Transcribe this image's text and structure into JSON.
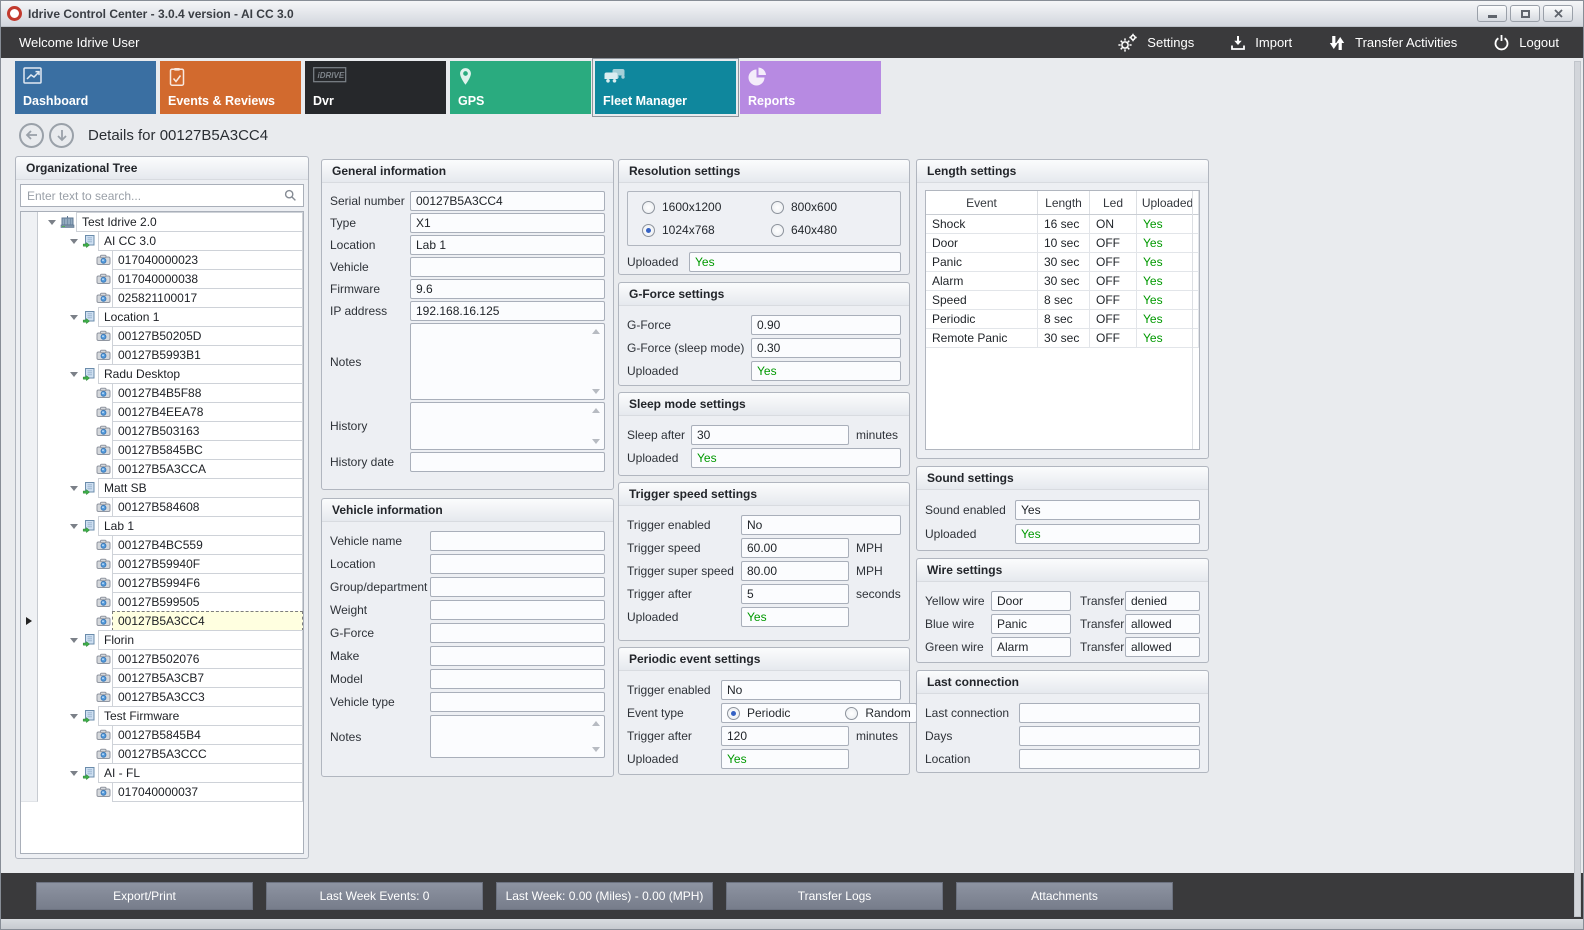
{
  "window": {
    "title": "Idrive Control Center - 3.0.4 version - AI CC 3.0"
  },
  "toolbar": {
    "welcome": "Welcome Idrive User",
    "actions": [
      {
        "id": "settings",
        "label": "Settings",
        "icon": "gears-icon"
      },
      {
        "id": "import",
        "label": "Import",
        "icon": "import-icon"
      },
      {
        "id": "transfer-activities",
        "label": "Transfer Activities",
        "icon": "transfer-icon"
      },
      {
        "id": "logout",
        "label": "Logout",
        "icon": "power-icon"
      }
    ]
  },
  "tiles": [
    {
      "id": "dashboard",
      "label": "Dashboard",
      "color": "#3a6fa2",
      "icon": "chart-line-icon",
      "selected": false
    },
    {
      "id": "events-reviews",
      "label": "Events & Reviews",
      "color": "#d26a2e",
      "icon": "clipboard-icon",
      "selected": false
    },
    {
      "id": "dvr",
      "label": "Dvr",
      "color": "#26282b",
      "icon": "dvr-logo-icon",
      "selected": false
    },
    {
      "id": "gps",
      "label": "GPS",
      "color": "#2aab7f",
      "icon": "map-pin-icon",
      "selected": false
    },
    {
      "id": "fleet-manager",
      "label": "Fleet Manager",
      "color": "#0f879d",
      "icon": "fleet-icon",
      "selected": true
    },
    {
      "id": "reports",
      "label": "Reports",
      "color": "#b78ae2",
      "icon": "pie-chart-icon",
      "selected": false
    }
  ],
  "details": {
    "title": "Details for 00127B5A3CC4"
  },
  "tree": {
    "title": "Organizational Tree",
    "search_placeholder": "Enter text to search...",
    "nodes": [
      {
        "label": "Test Idrive 2.0",
        "level": 0,
        "type": "org"
      },
      {
        "label": "AI CC 3.0",
        "level": 1,
        "type": "group"
      },
      {
        "label": "017040000023",
        "level": 2,
        "type": "device"
      },
      {
        "label": "017040000038",
        "level": 2,
        "type": "device"
      },
      {
        "label": "025821100017",
        "level": 2,
        "type": "device"
      },
      {
        "label": "Location 1",
        "level": 1,
        "type": "group"
      },
      {
        "label": "00127B50205D",
        "level": 2,
        "type": "device"
      },
      {
        "label": "00127B5993B1",
        "level": 2,
        "type": "device"
      },
      {
        "label": "Radu Desktop",
        "level": 1,
        "type": "group"
      },
      {
        "label": "00127B4B5F88",
        "level": 2,
        "type": "device"
      },
      {
        "label": "00127B4EEA78",
        "level": 2,
        "type": "device"
      },
      {
        "label": "00127B503163",
        "level": 2,
        "type": "device"
      },
      {
        "label": "00127B5845BC",
        "level": 2,
        "type": "device"
      },
      {
        "label": "00127B5A3CCA",
        "level": 2,
        "type": "device"
      },
      {
        "label": "Matt SB",
        "level": 1,
        "type": "group"
      },
      {
        "label": "00127B584608",
        "level": 2,
        "type": "device"
      },
      {
        "label": "Lab 1",
        "level": 1,
        "type": "group"
      },
      {
        "label": "00127B4BC559",
        "level": 2,
        "type": "device"
      },
      {
        "label": "00127B59940F",
        "level": 2,
        "type": "device"
      },
      {
        "label": "00127B5994F6",
        "level": 2,
        "type": "device"
      },
      {
        "label": "00127B599505",
        "level": 2,
        "type": "device"
      },
      {
        "label": "00127B5A3CC4",
        "level": 2,
        "type": "device",
        "selected": true
      },
      {
        "label": "Florin",
        "level": 1,
        "type": "group"
      },
      {
        "label": "00127B502076",
        "level": 2,
        "type": "device"
      },
      {
        "label": "00127B5A3CB7",
        "level": 2,
        "type": "device"
      },
      {
        "label": "00127B5A3CC3",
        "level": 2,
        "type": "device"
      },
      {
        "label": "Test Firmware",
        "level": 1,
        "type": "group"
      },
      {
        "label": "00127B5845B4",
        "level": 2,
        "type": "device"
      },
      {
        "label": "00127B5A3CCC",
        "level": 2,
        "type": "device"
      },
      {
        "label": "AI - FL",
        "level": 1,
        "type": "group"
      },
      {
        "label": "017040000037",
        "level": 2,
        "type": "device"
      }
    ]
  },
  "panels": {
    "general_info": {
      "title": "General information",
      "fields": [
        {
          "name": "serial-number",
          "label": "Serial number",
          "value": "00127B5A3CC4",
          "type": "text"
        },
        {
          "name": "type",
          "label": "Type",
          "value": "X1",
          "type": "text"
        },
        {
          "name": "location",
          "label": "Location",
          "value": "Lab 1",
          "type": "text"
        },
        {
          "name": "vehicle",
          "label": "Vehicle",
          "value": "",
          "type": "text"
        },
        {
          "name": "firmware",
          "label": "Firmware",
          "value": "9.6",
          "type": "text"
        },
        {
          "name": "ip-address",
          "label": "IP address",
          "value": "192.168.16.125",
          "type": "text"
        },
        {
          "name": "notes",
          "label": "Notes",
          "value": "",
          "type": "multiline"
        },
        {
          "name": "history",
          "label": "History",
          "value": "",
          "type": "multiline"
        },
        {
          "name": "history-date",
          "label": "History date",
          "value": "",
          "type": "text"
        }
      ]
    },
    "vehicle_info": {
      "title": "Vehicle information",
      "fields": [
        {
          "name": "vehicle-name",
          "label": "Vehicle name",
          "value": "",
          "type": "text"
        },
        {
          "name": "location",
          "label": "Location",
          "value": "",
          "type": "text"
        },
        {
          "name": "group-department",
          "label": "Group/department",
          "value": "",
          "type": "text"
        },
        {
          "name": "weight",
          "label": "Weight",
          "value": "",
          "type": "text"
        },
        {
          "name": "g-force",
          "label": "G-Force",
          "value": "",
          "type": "text"
        },
        {
          "name": "make",
          "label": "Make",
          "value": "",
          "type": "text"
        },
        {
          "name": "model",
          "label": "Model",
          "value": "",
          "type": "text"
        },
        {
          "name": "vehicle-type",
          "label": "Vehicle type",
          "value": "",
          "type": "text"
        },
        {
          "name": "notes",
          "label": "Notes",
          "value": "",
          "type": "multiline"
        }
      ]
    },
    "resolution": {
      "title": "Resolution settings",
      "options": [
        {
          "label": "1600x1200",
          "selected": false
        },
        {
          "label": "800x600",
          "selected": false
        },
        {
          "label": "1024x768",
          "selected": true
        },
        {
          "label": "640x480",
          "selected": false
        }
      ],
      "fields": [
        {
          "name": "uploaded",
          "label": "Uploaded",
          "value": "Yes",
          "type": "text",
          "green": true
        }
      ]
    },
    "gforce": {
      "title": "G-Force settings",
      "fields": [
        {
          "name": "g-force",
          "label": "G-Force",
          "value": "0.90",
          "type": "text"
        },
        {
          "name": "g-force-sleep-mode",
          "label": "G-Force (sleep mode)",
          "value": "0.30",
          "type": "text"
        },
        {
          "name": "uploaded",
          "label": "Uploaded",
          "value": "Yes",
          "type": "text",
          "green": true
        }
      ]
    },
    "sleep": {
      "title": "Sleep mode settings",
      "fields": [
        {
          "name": "sleep-after",
          "label": "Sleep after",
          "value": "30",
          "type": "text",
          "suffix": "minutes"
        },
        {
          "name": "uploaded",
          "label": "Uploaded",
          "value": "Yes",
          "type": "text",
          "green": true
        }
      ]
    },
    "trigger_speed": {
      "title": "Trigger speed settings",
      "fields": [
        {
          "name": "trigger-enabled",
          "label": "Trigger enabled",
          "value": "No",
          "type": "text"
        },
        {
          "name": "trigger-speed",
          "label": "Trigger speed",
          "value": "60.00",
          "type": "text",
          "suffix": "MPH"
        },
        {
          "name": "trigger-super-speed",
          "label": "Trigger super speed",
          "value": "80.00",
          "type": "text",
          "suffix": "MPH"
        },
        {
          "name": "trigger-after",
          "label": "Trigger after",
          "value": "5",
          "type": "text",
          "suffix": "seconds"
        },
        {
          "name": "uploaded",
          "label": "Uploaded",
          "value": "Yes",
          "type": "text",
          "green": true,
          "short": true
        }
      ]
    },
    "periodic": {
      "title": "Periodic event settings",
      "fields": [
        {
          "name": "trigger-enabled",
          "label": "Trigger enabled",
          "value": "No",
          "type": "text"
        },
        {
          "name": "event-type",
          "label": "Event type",
          "type": "radio-pair",
          "short": true,
          "options": [
            {
              "label": "Periodic",
              "selected": true
            },
            {
              "label": "Random",
              "selected": false
            }
          ]
        },
        {
          "name": "trigger-after",
          "label": "Trigger after",
          "value": "120",
          "type": "text",
          "suffix": "minutes"
        },
        {
          "name": "uploaded",
          "label": "Uploaded",
          "value": "Yes",
          "type": "text",
          "green": true,
          "short": true
        }
      ]
    },
    "length": {
      "title": "Length settings",
      "columns": [
        "Event",
        "Length",
        "Led",
        "Uploaded"
      ],
      "rows": [
        [
          "Shock",
          "16 sec",
          "ON",
          "Yes"
        ],
        [
          "Door",
          "10 sec",
          "OFF",
          "Yes"
        ],
        [
          "Panic",
          "30 sec",
          "OFF",
          "Yes"
        ],
        [
          "Alarm",
          "30 sec",
          "OFF",
          "Yes"
        ],
        [
          "Speed",
          "8 sec",
          "OFF",
          "Yes"
        ],
        [
          "Periodic",
          "8 sec",
          "OFF",
          "Yes"
        ],
        [
          "Remote Panic",
          "30 sec",
          "OFF",
          "Yes"
        ]
      ]
    },
    "sound": {
      "title": "Sound settings",
      "fields": [
        {
          "name": "sound-enabled",
          "label": "Sound enabled",
          "value": "Yes",
          "type": "text"
        },
        {
          "name": "uploaded",
          "label": "Uploaded",
          "value": "Yes",
          "type": "text",
          "green": true
        }
      ]
    },
    "wire": {
      "title": "Wire settings",
      "rows": [
        {
          "label": "Yellow wire",
          "value": "Door",
          "label2": "Transfer",
          "value2": "denied"
        },
        {
          "label": "Blue wire",
          "value": "Panic",
          "label2": "Transfer",
          "value2": "allowed"
        },
        {
          "label": "Green wire",
          "value": "Alarm",
          "label2": "Transfer",
          "value2": "allowed"
        }
      ]
    },
    "last_connection": {
      "title": "Last connection",
      "fields": [
        {
          "name": "last-connection",
          "label": "Last connection",
          "value": "",
          "type": "text"
        },
        {
          "name": "days",
          "label": "Days",
          "value": "",
          "type": "text"
        },
        {
          "name": "location",
          "label": "Location",
          "value": "",
          "type": "text"
        }
      ]
    }
  },
  "bottom_bar": {
    "buttons": [
      "Export/Print",
      "Last Week Events: 0",
      "Last Week: 0.00 (Miles) - 0.00 (MPH)",
      "Transfer Logs",
      "Attachments"
    ]
  },
  "colors": {
    "uploaded_green": "#009900",
    "selected_row": "#ffffe0"
  }
}
